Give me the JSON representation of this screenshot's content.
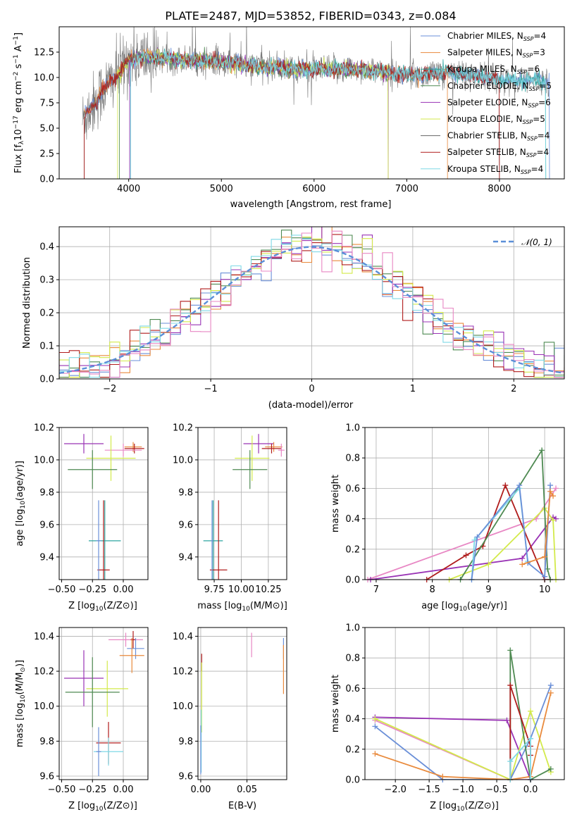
{
  "colors": {
    "chabrier_miles": "#6a8fd8",
    "salpeter_miles": "#e98a3c",
    "kroupa_miles": "#2ca5a0",
    "chabrier_elodie": "#4e8a52",
    "salpeter_elodie": "#9933b5",
    "kroupa_elodie": "#d3ea4b",
    "chabrier_stelib": "#666666",
    "salpeter_stelib": "#b01c1c",
    "kroupa_stelib": "#7fd9e6",
    "extra_pink": "#e887c4",
    "gauss": "#5b8fd8"
  },
  "chart_data": [
    {
      "id": "spectrum",
      "type": "line",
      "title": "PLATE=2487, MJD=53852, FIBERID=0343, z=0.084",
      "xlabel": "wavelength [Angstrom, rest frame]",
      "ylabel": "Flux [fλ10⁻¹⁷ erg cm⁻² s⁻¹ A⁻¹]",
      "xlim": [
        3250,
        8700
      ],
      "ylim": [
        0,
        15
      ],
      "xticks": [
        "4000",
        "5000",
        "6000",
        "7000",
        "8000"
      ],
      "yticks": [
        "0.0",
        "2.5",
        "5.0",
        "7.5",
        "10.0",
        "12.5"
      ],
      "legend_position": "top-right",
      "series": [
        {
          "name": "Chabrier MILES, N_SSP=4",
          "legend_text": "Chabrier MILES, N",
          "sub": "SSP",
          "nssp": "=4",
          "color_key": "chabrier_miles"
        },
        {
          "name": "Salpeter MILES, N_SSP=3",
          "legend_text": "Salpeter MILES, N",
          "sub": "SSP",
          "nssp": "=3",
          "color_key": "salpeter_miles"
        },
        {
          "name": "Kroupa MILES, N_SSP=6",
          "legend_text": "Kroupa MILES, N",
          "sub": "SSP",
          "nssp": "=6",
          "color_key": "kroupa_miles"
        },
        {
          "name": "Chabrier ELODIE, N_SSP=5",
          "legend_text": "Chabrier ELODIE, N",
          "sub": "SSP",
          "nssp": "=5",
          "color_key": "chabrier_elodie"
        },
        {
          "name": "Salpeter ELODIE, N_SSP=6",
          "legend_text": "Salpeter ELODIE, N",
          "sub": "SSP",
          "nssp": "=6",
          "color_key": "salpeter_elodie"
        },
        {
          "name": "Kroupa ELODIE, N_SSP=5",
          "legend_text": "Kroupa ELODIE, N",
          "sub": "SSP",
          "nssp": "=5",
          "color_key": "kroupa_elodie"
        },
        {
          "name": "Chabrier STELIB, N_SSP=4",
          "legend_text": "Chabrier STELIB, N",
          "sub": "SSP",
          "nssp": "=4",
          "color_key": "chabrier_stelib"
        },
        {
          "name": "Salpeter STELIB, N_SSP=4",
          "legend_text": "Salpeter STELIB, N",
          "sub": "SSP",
          "nssp": "=4",
          "color_key": "salpeter_stelib"
        },
        {
          "name": "Kroupa STELIB, N_SSP=4",
          "legend_text": "Kroupa STELIB, N",
          "sub": "SSP",
          "nssp": "=4",
          "color_key": "kroupa_stelib"
        }
      ],
      "continuum": [
        [
          3500,
          5.8
        ],
        [
          3700,
          8.5
        ],
        [
          3900,
          10.5
        ],
        [
          4000,
          11.8
        ],
        [
          4200,
          12.0
        ],
        [
          4500,
          11.8
        ],
        [
          5000,
          11.5
        ],
        [
          5500,
          11.0
        ],
        [
          6000,
          10.8
        ],
        [
          6500,
          10.8
        ],
        [
          7000,
          10.2
        ],
        [
          7500,
          10.5
        ],
        [
          8000,
          9.8
        ],
        [
          8500,
          9.6
        ]
      ]
    },
    {
      "id": "residuals",
      "type": "histogram",
      "xlabel": "(data-model)/error",
      "ylabel": "Normed distribution",
      "xlim": [
        -2.5,
        2.5
      ],
      "ylim": [
        0,
        0.46
      ],
      "xticks": [
        "−2",
        "−1",
        "0",
        "1",
        "2"
      ],
      "xtick_values": [
        -2,
        -1,
        0,
        1,
        2
      ],
      "yticks": [
        "0.0",
        "0.1",
        "0.2",
        "0.3",
        "0.4"
      ],
      "ytick_values": [
        0,
        0.1,
        0.2,
        0.3,
        0.4
      ],
      "grid": true,
      "legend_position": "top-right",
      "legend": "𝒩(0, 1)",
      "bin_width": 0.1,
      "mean": 0,
      "sigma": 1
    },
    {
      "id": "age_vs_Z",
      "type": "errorbar",
      "xlabel": "Z [log10(Z/Z⊙)]",
      "xlabel_main": "Z [log",
      "xlabel_sub": "10",
      "xlabel_rest": "(Z/Z⊙)]",
      "ylabel": "age [log10(age/yr)]",
      "xlim": [
        -0.52,
        0.2
      ],
      "ylim": [
        9.26,
        10.2
      ],
      "xticks": [
        "−0.50",
        "−0.25",
        "0.00"
      ],
      "xtick_values": [
        -0.5,
        -0.25,
        0.0
      ],
      "yticks": [
        "9.4",
        "9.6",
        "9.8",
        "10.0",
        "10.2"
      ],
      "ytick_values": [
        9.4,
        9.6,
        9.8,
        10.0,
        10.2
      ],
      "grid": true,
      "points": [
        {
          "x": -0.32,
          "y": 10.1,
          "xerr": 0.16,
          "yerr": 0.06,
          "color_key": "salpeter_elodie"
        },
        {
          "x": 0.08,
          "y": 10.08,
          "xerr": 0.07,
          "yerr": 0.03,
          "color_key": "salpeter_miles"
        },
        {
          "x": 0.09,
          "y": 10.07,
          "xerr": 0.08,
          "yerr": 0.03,
          "color_key": "salpeter_stelib"
        },
        {
          "x": 0.0,
          "y": 10.06,
          "xerr": 0.15,
          "yerr": 0.04,
          "color_key": "extra_pink"
        },
        {
          "x": -0.1,
          "y": 10.01,
          "xerr": 0.2,
          "yerr": 0.14,
          "color_key": "kroupa_elodie"
        },
        {
          "x": -0.25,
          "y": 9.94,
          "xerr": 0.2,
          "yerr": 0.12,
          "color_key": "chabrier_elodie"
        },
        {
          "x": -0.15,
          "y": 9.5,
          "xerr": 0.13,
          "yerr": 0.25,
          "color_key": "kroupa_miles"
        },
        {
          "x": -0.16,
          "y": 9.32,
          "xerr": 0.05,
          "yerr": 0.43,
          "color_key": "salpeter_stelib"
        },
        {
          "x": -0.2,
          "y": 9.5,
          "xerr": 0.02,
          "yerr": 0.25,
          "color_key": "chabrier_miles"
        }
      ]
    },
    {
      "id": "age_vs_mass",
      "type": "errorbar",
      "xlabel": "mass [log10(M/M⊙)]",
      "xlabel_main": "mass [log",
      "xlabel_sub": "10",
      "xlabel_rest": "(M/M⊙)]",
      "xlim": [
        9.6,
        10.42
      ],
      "ylim": [
        9.26,
        10.2
      ],
      "xticks": [
        "9.75",
        "10.00",
        "10.25"
      ],
      "xtick_values": [
        9.75,
        10.0,
        10.25
      ],
      "yticks": [
        "9.4",
        "9.6",
        "9.8",
        "10.0",
        "10.2"
      ],
      "ytick_values": [
        9.4,
        9.6,
        9.8,
        10.0,
        10.2
      ],
      "grid": true,
      "points": [
        {
          "x": 10.16,
          "y": 10.1,
          "xerr": 0.14,
          "yerr": 0.06,
          "color_key": "salpeter_elodie"
        },
        {
          "x": 10.3,
          "y": 10.08,
          "xerr": 0.08,
          "yerr": 0.03,
          "color_key": "salpeter_miles"
        },
        {
          "x": 10.28,
          "y": 10.07,
          "xerr": 0.09,
          "yerr": 0.03,
          "color_key": "salpeter_stelib"
        },
        {
          "x": 10.37,
          "y": 10.06,
          "xerr": 0.03,
          "yerr": 0.04,
          "color_key": "extra_pink"
        },
        {
          "x": 10.1,
          "y": 10.01,
          "xerr": 0.16,
          "yerr": 0.14,
          "color_key": "kroupa_elodie"
        },
        {
          "x": 10.08,
          "y": 9.94,
          "xerr": 0.16,
          "yerr": 0.12,
          "color_key": "chabrier_elodie"
        },
        {
          "x": 9.74,
          "y": 9.5,
          "xerr": 0.09,
          "yerr": 0.25,
          "color_key": "kroupa_miles"
        },
        {
          "x": 9.79,
          "y": 9.32,
          "xerr": 0.08,
          "yerr": 0.43,
          "color_key": "salpeter_stelib"
        },
        {
          "x": 9.73,
          "y": 9.5,
          "xerr": 0.01,
          "yerr": 0.25,
          "color_key": "chabrier_miles"
        }
      ]
    },
    {
      "id": "massweight_vs_age",
      "type": "line",
      "xlabel": "age [log10(age/yr)]",
      "xlabel_main": "age  [log",
      "xlabel_sub": "10",
      "xlabel_rest": "(age/yr)]",
      "ylabel": "mass weight",
      "xlim": [
        6.8,
        10.35
      ],
      "ylim": [
        0,
        1
      ],
      "xticks": [
        "7",
        "8",
        "9",
        "10"
      ],
      "xtick_values": [
        7,
        8,
        9,
        10
      ],
      "yticks": [
        "0.0",
        "0.2",
        "0.4",
        "0.6",
        "0.8",
        "1.0"
      ],
      "ytick_values": [
        0,
        0.2,
        0.4,
        0.6,
        0.8,
        1.0
      ],
      "grid": true,
      "series": [
        {
          "color_key": "extra_pink",
          "x": [
            6.85,
            9.85,
            10.2
          ],
          "y": [
            0.0,
            0.4,
            0.6
          ]
        },
        {
          "color_key": "salpeter_elodie",
          "x": [
            6.9,
            9.6,
            10.15,
            10.2
          ],
          "y": [
            0.0,
            0.14,
            0.41,
            0.4
          ]
        },
        {
          "color_key": "salpeter_stelib",
          "x": [
            7.9,
            8.6,
            8.9,
            9.3,
            10.0,
            10.1
          ],
          "y": [
            0.0,
            0.16,
            0.22,
            0.62,
            0.0,
            0.0
          ]
        },
        {
          "color_key": "kroupa_elodie",
          "x": [
            8.3,
            9.0,
            10.0,
            10.15,
            10.2
          ],
          "y": [
            0.0,
            0.1,
            0.47,
            0.39,
            0.0
          ]
        },
        {
          "color_key": "chabrier_elodie",
          "x": [
            8.5,
            9.95,
            10.05,
            10.1
          ],
          "y": [
            0.0,
            0.85,
            0.07,
            0.0
          ]
        },
        {
          "color_key": "kroupa_stelib",
          "x": [
            8.7,
            8.75,
            9.55,
            9.7
          ],
          "y": [
            0.0,
            0.26,
            0.6,
            0.12
          ]
        },
        {
          "color_key": "chabrier_miles",
          "x": [
            8.7,
            8.8,
            9.55,
            9.7,
            10.0,
            10.1
          ],
          "y": [
            0.0,
            0.28,
            0.62,
            0.11,
            0.02,
            0.62
          ]
        },
        {
          "color_key": "salpeter_miles",
          "x": [
            9.6,
            10.0,
            10.1,
            10.15
          ],
          "y": [
            0.1,
            0.15,
            0.58,
            0.55
          ]
        }
      ]
    },
    {
      "id": "mass_vs_Z",
      "type": "errorbar",
      "xlabel": "Z [log10(Z/Z⊙)]",
      "xlabel_main": "Z [log",
      "xlabel_sub": "10",
      "xlabel_rest": "(Z/Z⊙)]",
      "ylabel": "mass [log10(M/M⊙)]",
      "xlim": [
        -0.52,
        0.2
      ],
      "ylim": [
        9.58,
        10.45
      ],
      "xticks": [
        "−0.50",
        "−0.25",
        "0.00"
      ],
      "xtick_values": [
        -0.5,
        -0.25,
        0.0
      ],
      "yticks": [
        "9.6",
        "9.8",
        "10.0",
        "10.2",
        "10.4"
      ],
      "ytick_values": [
        9.6,
        9.8,
        10.0,
        10.2,
        10.4
      ],
      "grid": true,
      "points": [
        {
          "x": -0.32,
          "y": 10.16,
          "xerr": 0.16,
          "yerr": 0.16,
          "color_key": "salpeter_elodie"
        },
        {
          "x": 0.02,
          "y": 10.38,
          "xerr": 0.14,
          "yerr": 0.04,
          "color_key": "extra_pink"
        },
        {
          "x": 0.08,
          "y": 10.38,
          "xerr": 0.02,
          "yerr": 0.05,
          "color_key": "salpeter_stelib"
        },
        {
          "x": 0.1,
          "y": 10.33,
          "xerr": 0.07,
          "yerr": 0.06,
          "color_key": "chabrier_miles"
        },
        {
          "x": 0.07,
          "y": 10.29,
          "xerr": 0.1,
          "yerr": 0.1,
          "color_key": "salpeter_miles"
        },
        {
          "x": -0.13,
          "y": 10.1,
          "xerr": 0.17,
          "yerr": 0.16,
          "color_key": "kroupa_elodie"
        },
        {
          "x": -0.25,
          "y": 10.08,
          "xerr": 0.22,
          "yerr": 0.2,
          "color_key": "chabrier_elodie"
        },
        {
          "x": -0.12,
          "y": 9.79,
          "xerr": 0.1,
          "yerr": 0.12,
          "color_key": "salpeter_stelib"
        },
        {
          "x": -0.12,
          "y": 9.74,
          "xerr": 0.12,
          "yerr": 0.08,
          "color_key": "kroupa_stelib"
        },
        {
          "x": -0.2,
          "y": 9.74,
          "xerr": 0.02,
          "yerr": 0.14,
          "color_key": "chabrier_miles"
        }
      ]
    },
    {
      "id": "mass_vs_ebv",
      "type": "errorbar",
      "xlabel": "E(B-V)",
      "xlim": [
        -0.003,
        0.093
      ],
      "ylim": [
        9.58,
        10.45
      ],
      "xticks": [
        "0.00",
        "0.05"
      ],
      "xtick_values": [
        0.0,
        0.05
      ],
      "yticks": [
        "9.6",
        "9.8",
        "10.0",
        "10.2",
        "10.4"
      ],
      "ytick_values": [
        9.6,
        9.8,
        10.0,
        10.2,
        10.4
      ],
      "grid": true,
      "points": [
        {
          "x": 0.055,
          "y": 10.35,
          "xerr": 0,
          "yerr": 0.07,
          "color_key": "extra_pink"
        },
        {
          "x": 0.0895,
          "y": 10.33,
          "xerr": 0,
          "yerr": 0.06,
          "color_key": "chabrier_miles"
        },
        {
          "x": 0.0895,
          "y": 10.21,
          "xerr": 0,
          "yerr": 0.14,
          "color_key": "salpeter_miles"
        },
        {
          "x": 0.001,
          "y": 10.25,
          "xerr": 0,
          "yerr": 0.05,
          "color_key": "salpeter_stelib"
        },
        {
          "x": 0.001,
          "y": 10.05,
          "xerr": 0,
          "yerr": 0.2,
          "color_key": "kroupa_elodie"
        },
        {
          "x": 0.0005,
          "y": 9.8,
          "xerr": 0,
          "yerr": 0.18,
          "color_key": "kroupa_stelib"
        },
        {
          "x": 0.0,
          "y": 9.75,
          "xerr": 0,
          "yerr": 0.14,
          "color_key": "chabrier_miles"
        }
      ]
    },
    {
      "id": "massweight_vs_Z",
      "type": "line",
      "xlabel": "Z [log10(Z/Z⊙)]",
      "xlabel_main": "Z [log",
      "xlabel_sub": "10",
      "xlabel_rest": "(Z/Z⊙)]",
      "ylabel": "mass weight",
      "xlim": [
        -2.45,
        0.5
      ],
      "ylim": [
        0,
        1
      ],
      "xticks": [
        "−2.0",
        "−1.5",
        "−1.0",
        "−0.5",
        "0.0"
      ],
      "xtick_values": [
        -2.0,
        -1.5,
        -1.0,
        -0.5,
        0.0
      ],
      "yticks": [
        "0.0",
        "0.2",
        "0.4",
        "0.6",
        "0.8",
        "1.0"
      ],
      "ytick_values": [
        0,
        0.2,
        0.4,
        0.6,
        0.8,
        1.0
      ],
      "grid": true,
      "series": [
        {
          "color_key": "salpeter_elodie",
          "x": [
            -2.3,
            -0.35,
            0.0
          ],
          "y": [
            0.41,
            0.39,
            0.0
          ]
        },
        {
          "color_key": "extra_pink",
          "x": [
            -2.3,
            -0.3,
            0.0
          ],
          "y": [
            0.39,
            0.0,
            0.0
          ]
        },
        {
          "color_key": "kroupa_elodie",
          "x": [
            -2.3,
            -0.3,
            0.0,
            0.3
          ],
          "y": [
            0.4,
            0.0,
            0.45,
            0.05
          ]
        },
        {
          "color_key": "chabrier_miles",
          "x": [
            -2.3,
            -1.3,
            -0.3,
            0.0,
            0.3
          ],
          "y": [
            0.35,
            0.0,
            0.0,
            0.27,
            0.62
          ]
        },
        {
          "color_key": "salpeter_miles",
          "x": [
            -2.3,
            -1.3,
            -0.3,
            0.0,
            0.3
          ],
          "y": [
            0.17,
            0.02,
            0.0,
            0.02,
            0.57
          ]
        },
        {
          "color_key": "chabrier_elodie",
          "x": [
            -0.3,
            -0.3,
            0.0,
            0.3
          ],
          "y": [
            0.0,
            0.85,
            0.0,
            0.07
          ]
        },
        {
          "color_key": "salpeter_stelib",
          "x": [
            -0.3,
            -0.3,
            0.0,
            0.0
          ],
          "y": [
            0.0,
            0.62,
            0.22,
            0.16
          ]
        },
        {
          "color_key": "kroupa_stelib",
          "x": [
            -0.3,
            -0.3,
            0.0,
            0.0
          ],
          "y": [
            0.0,
            0.12,
            0.27,
            0.0
          ]
        }
      ]
    }
  ]
}
